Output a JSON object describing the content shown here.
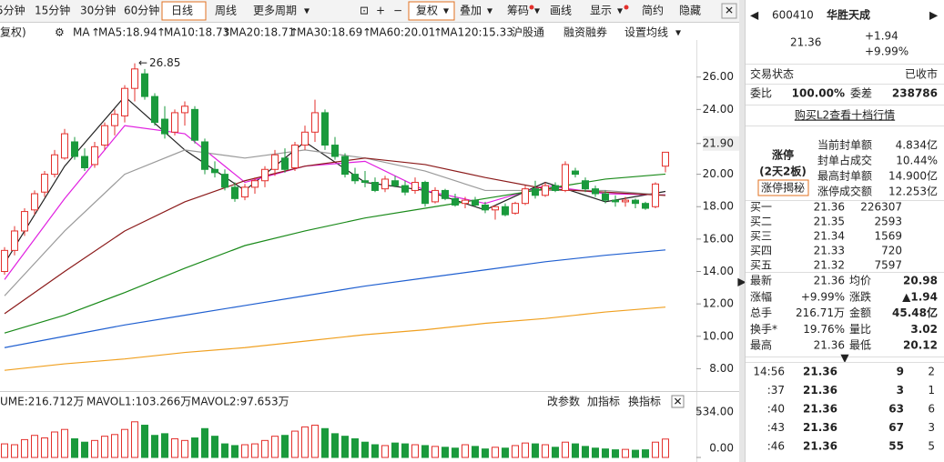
{
  "toolbar": {
    "periods": [
      "5分钟",
      "15分钟",
      "30分钟",
      "60分钟",
      "日线",
      "周线",
      "更多周期"
    ],
    "tools": [
      "复权",
      "叠加",
      "筹码",
      "画线",
      "显示",
      "简约",
      "隐藏"
    ]
  },
  "ma_legend": {
    "prefix": "复权)",
    "label": "MA",
    "items": [
      "MA5:18.94",
      "MA10:18.73",
      "MA20:18.71",
      "MA30:18.69",
      "MA60:20.01",
      "MA120:15.33"
    ],
    "links": [
      "沪股通",
      "融资融券",
      "设置均线"
    ]
  },
  "chart_data": [
    {
      "type": "candlestick",
      "open": [
        14.0,
        15.3,
        16.5,
        17.8,
        18.9,
        20.0,
        21.0,
        22.0,
        21.1,
        20.6,
        21.8,
        23.0,
        23.6,
        25.3,
        26.2,
        24.8,
        23.4,
        22.6,
        23.8,
        24.0,
        22.0,
        20.3,
        20.0,
        19.2,
        18.6,
        19.2,
        19.6,
        20.3,
        21.0,
        20.4,
        21.8,
        22.6,
        23.8,
        21.8,
        21.1,
        20.0,
        19.6,
        19.5,
        19.1,
        19.6,
        19.3,
        19.0,
        19.5,
        18.3,
        19.0,
        18.5,
        18.2,
        18.4,
        18.1,
        17.8,
        18.0,
        17.6,
        18.2,
        19.1,
        18.7,
        19.3,
        19.0,
        20.2,
        19.6,
        19.1,
        18.8,
        18.4,
        18.3,
        18.4,
        18.2,
        18.0,
        20.5
      ],
      "high": [
        15.5,
        16.8,
        17.9,
        19.0,
        20.2,
        21.5,
        22.8,
        22.3,
        21.6,
        22.0,
        23.2,
        24.0,
        25.5,
        26.85,
        26.5,
        25.0,
        24.2,
        24.0,
        24.5,
        24.2,
        22.2,
        20.8,
        20.3,
        19.5,
        19.4,
        19.8,
        20.5,
        21.5,
        21.6,
        22.0,
        23.0,
        24.6,
        24.0,
        22.3,
        21.3,
        20.4,
        20.2,
        19.8,
        19.9,
        19.9,
        19.6,
        19.8,
        19.6,
        19.2,
        19.1,
        18.8,
        18.6,
        18.6,
        18.3,
        18.1,
        18.2,
        18.3,
        19.3,
        19.6,
        19.5,
        19.5,
        20.8,
        20.4,
        19.8,
        19.3,
        19.0,
        18.7,
        18.6,
        18.5,
        18.3,
        19.5,
        21.36
      ],
      "low": [
        13.8,
        15.0,
        16.2,
        17.5,
        18.6,
        19.8,
        20.9,
        20.9,
        20.2,
        20.4,
        21.5,
        22.4,
        23.2,
        24.5,
        24.6,
        23.0,
        22.2,
        22.4,
        23.0,
        21.9,
        20.0,
        19.8,
        19.0,
        18.3,
        18.4,
        18.8,
        19.2,
        19.9,
        20.1,
        20.2,
        21.5,
        22.0,
        21.5,
        20.9,
        19.8,
        19.4,
        19.2,
        18.9,
        18.9,
        19.2,
        18.7,
        18.8,
        18.0,
        18.2,
        18.4,
        18.0,
        17.9,
        18.0,
        17.6,
        17.2,
        17.4,
        17.5,
        18.1,
        18.5,
        18.6,
        18.9,
        18.9,
        19.8,
        18.9,
        18.6,
        18.2,
        18.0,
        18.0,
        17.9,
        17.8,
        17.9,
        20.12
      ],
      "close": [
        15.3,
        16.5,
        17.7,
        18.8,
        20.0,
        21.2,
        22.5,
        21.1,
        20.4,
        21.7,
        23.0,
        23.7,
        25.3,
        26.5,
        24.8,
        23.2,
        22.5,
        23.8,
        24.2,
        22.1,
        20.3,
        20.1,
        19.2,
        18.5,
        19.2,
        19.6,
        20.3,
        21.2,
        20.3,
        21.8,
        22.6,
        23.8,
        21.8,
        21.1,
        20.0,
        19.6,
        19.5,
        19.0,
        19.7,
        19.3,
        18.9,
        19.5,
        18.2,
        19.0,
        18.5,
        18.1,
        18.4,
        18.1,
        17.8,
        18.0,
        17.5,
        18.2,
        19.1,
        18.7,
        19.3,
        19.0,
        20.6,
        20.0,
        19.1,
        18.8,
        18.4,
        18.3,
        18.4,
        18.2,
        17.9,
        19.4,
        21.36
      ],
      "series": [
        {
          "color": "#222222",
          "x": [
            0,
            6,
            12,
            18,
            24,
            30,
            36,
            42,
            48,
            54,
            60,
            66
          ],
          "values": [
            14.5,
            20.5,
            24.8,
            21.5,
            19.0,
            22.0,
            19.5,
            19.0,
            17.8,
            19.5,
            18.3,
            18.94
          ]
        },
        {
          "color": "#e020e0",
          "x": [
            0,
            6,
            12,
            18,
            24,
            30,
            36,
            42,
            48,
            54,
            60,
            66
          ],
          "values": [
            13.5,
            18.5,
            23.0,
            22.5,
            19.5,
            20.5,
            20.8,
            19.0,
            18.2,
            19.3,
            18.8,
            18.73
          ]
        },
        {
          "color": "#9a9a9a",
          "x": [
            0,
            6,
            12,
            18,
            24,
            30,
            36,
            42,
            48,
            54,
            60,
            66
          ],
          "values": [
            12.5,
            16.5,
            20.0,
            21.5,
            21.0,
            21.5,
            21.0,
            20.2,
            19.0,
            19.0,
            19.0,
            18.71
          ]
        },
        {
          "color": "#8b1a1a",
          "x": [
            0,
            6,
            12,
            18,
            24,
            30,
            36,
            42,
            48,
            54,
            60,
            66
          ],
          "values": [
            11.4,
            14.0,
            16.5,
            18.3,
            19.6,
            20.5,
            21.0,
            20.6,
            19.8,
            19.1,
            18.9,
            18.69
          ]
        },
        {
          "color": "#1a8a1a",
          "x": [
            0,
            6,
            12,
            18,
            24,
            30,
            36,
            42,
            48,
            54,
            60,
            66
          ],
          "values": [
            10.2,
            11.3,
            12.7,
            14.2,
            15.6,
            16.5,
            17.3,
            17.9,
            18.5,
            19.1,
            19.7,
            20.01
          ]
        },
        {
          "color": "#1f5fd0",
          "x": [
            0,
            6,
            12,
            18,
            24,
            30,
            36,
            42,
            48,
            54,
            60,
            66
          ],
          "values": [
            9.3,
            10.0,
            10.7,
            11.3,
            11.9,
            12.5,
            13.1,
            13.6,
            14.1,
            14.6,
            15.0,
            15.33
          ]
        },
        {
          "color": "#f0a020",
          "x": [
            0,
            6,
            12,
            18,
            24,
            30,
            36,
            42,
            48,
            54,
            60,
            66
          ],
          "values": [
            7.9,
            8.3,
            8.6,
            9.0,
            9.3,
            9.7,
            10.1,
            10.4,
            10.8,
            11.1,
            11.5,
            11.8
          ]
        }
      ],
      "annotation": "26.85",
      "up_color": "#e3302c",
      "down_color": "#1a9a3c",
      "ylim": [
        6.9,
        27.5
      ],
      "yticks": [
        {
          "value": 26,
          "label": "26.00"
        },
        {
          "value": 24,
          "label": "24.00"
        },
        {
          "value": 21.9,
          "label": "21.90"
        },
        {
          "value": 20,
          "label": "20.00"
        },
        {
          "value": 18,
          "label": "18.00"
        },
        {
          "value": 16,
          "label": "16.00"
        },
        {
          "value": 14,
          "label": "14.00"
        },
        {
          "value": 12,
          "label": "12.00"
        },
        {
          "value": 10,
          "label": "10.00"
        },
        {
          "value": 8,
          "label": "8.00"
        }
      ]
    },
    {
      "type": "bar",
      "values": [
        160,
        150,
        210,
        260,
        230,
        300,
        330,
        220,
        180,
        200,
        250,
        270,
        330,
        420,
        380,
        260,
        280,
        220,
        200,
        230,
        340,
        250,
        160,
        140,
        150,
        160,
        200,
        250,
        260,
        310,
        360,
        380,
        340,
        280,
        250,
        220,
        180,
        150,
        140,
        170,
        160,
        150,
        140,
        130,
        120,
        110,
        150,
        130,
        100,
        120,
        110,
        140,
        170,
        160,
        150,
        120,
        180,
        160,
        130,
        110,
        100,
        90,
        95,
        85,
        90,
        180,
        216.712
      ],
      "ylim": [
        0,
        600
      ],
      "yticks": [
        {
          "value": 534,
          "label": "534.00"
        },
        {
          "value": 0,
          "label": "0.00"
        }
      ]
    }
  ],
  "volume_legend": {
    "items": [
      "UME:216.712万",
      "MAVOL1:103.266万",
      "MAVOL2:97.653万"
    ],
    "buttons": [
      "改参数",
      "加指标",
      "换指标"
    ]
  },
  "quote": {
    "code": "600410",
    "name": "华胜天成",
    "price": "21.36",
    "change": "+1.94",
    "pct": "+9.99%",
    "status": [
      "交易状态",
      "已收市"
    ],
    "ratio": [
      "委比",
      "100.00%",
      "委差",
      "238786"
    ],
    "l2_link": "购买L2查看十档行情",
    "limit": {
      "title": "涨停",
      "days": "(2天2板)",
      "button": "涨停揭秘",
      "rows": [
        [
          "当前封单额",
          "4.834亿"
        ],
        [
          "封单占成交",
          "10.44%"
        ],
        [
          "最高封单额",
          "14.900亿"
        ],
        [
          "涨停成交额",
          "12.253亿"
        ]
      ]
    },
    "bids": [
      [
        "买一",
        "21.36",
        "226307"
      ],
      [
        "买二",
        "21.35",
        "2593"
      ],
      [
        "买三",
        "21.34",
        "1569"
      ],
      [
        "买四",
        "21.33",
        "720"
      ],
      [
        "买五",
        "21.32",
        "7597"
      ]
    ],
    "stats": [
      [
        "最新",
        "21.36",
        "均价",
        "20.98"
      ],
      [
        "涨幅",
        "+9.99%",
        "涨跌",
        "▲1.94"
      ],
      [
        "总手",
        "216.71万",
        "金额",
        "45.48亿"
      ],
      [
        "换手*",
        "19.76%",
        "量比",
        "3.02"
      ],
      [
        "最高",
        "21.36",
        "最低",
        "20.12"
      ]
    ],
    "trades": [
      [
        "14:56",
        "21.36",
        "9",
        "2"
      ],
      [
        ":37",
        "21.36",
        "3",
        "1"
      ],
      [
        ":40",
        "21.36",
        "63",
        "6"
      ],
      [
        ":43",
        "21.36",
        "67",
        "3"
      ],
      [
        ":46",
        "21.36",
        "55",
        "5"
      ]
    ]
  }
}
